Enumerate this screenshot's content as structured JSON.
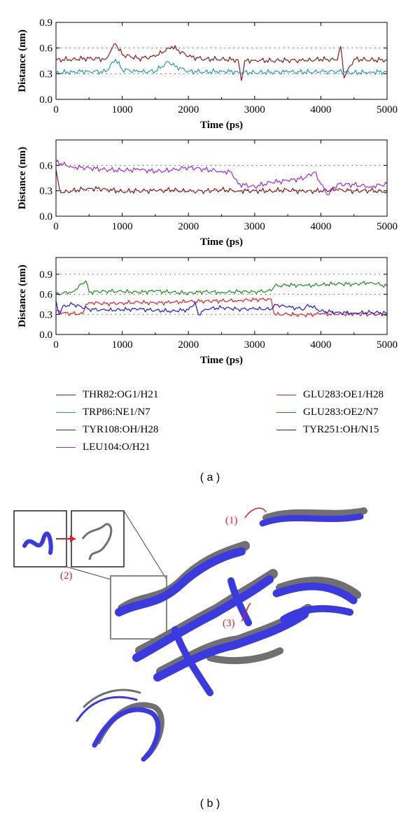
{
  "chart_data": [
    {
      "type": "line",
      "xlabel": "Time (ps)",
      "ylabel": "Distance (nm)",
      "xlim": [
        0,
        5000
      ],
      "ylim": [
        0,
        0.9
      ],
      "xticks": [
        "0",
        "1000",
        "2000",
        "3000",
        "4000",
        "5000"
      ],
      "yticks": [
        "0.0",
        "0.3",
        "0.6",
        "0.9"
      ],
      "grid": "dotted horizontal",
      "series": [
        {
          "name": "THR82:OG1/H21",
          "color": "#8b1a1a",
          "x": [
            0,
            250,
            500,
            750,
            850,
            900,
            1000,
            1250,
            1500,
            1700,
            1750,
            2000,
            2250,
            2500,
            2750,
            2800,
            2850,
            3000,
            3250,
            3500,
            3750,
            4000,
            4250,
            4300,
            4350,
            4500,
            4750,
            5000
          ],
          "values": [
            0.46,
            0.47,
            0.48,
            0.47,
            0.6,
            0.65,
            0.52,
            0.48,
            0.5,
            0.6,
            0.62,
            0.5,
            0.47,
            0.47,
            0.46,
            0.22,
            0.45,
            0.46,
            0.45,
            0.46,
            0.45,
            0.47,
            0.46,
            0.62,
            0.25,
            0.47,
            0.46,
            0.46
          ]
        },
        {
          "name": "TRP86:NE1/N7",
          "color": "#2a9d9d",
          "x": [
            0,
            250,
            500,
            750,
            900,
            1000,
            1250,
            1500,
            1700,
            1750,
            2000,
            2250,
            2500,
            2750,
            3000,
            3250,
            3500,
            3750,
            4000,
            4250,
            4500,
            4750,
            5000
          ],
          "values": [
            0.31,
            0.32,
            0.33,
            0.32,
            0.47,
            0.35,
            0.32,
            0.33,
            0.44,
            0.4,
            0.33,
            0.32,
            0.33,
            0.32,
            0.31,
            0.32,
            0.32,
            0.32,
            0.32,
            0.33,
            0.31,
            0.32,
            0.32
          ]
        }
      ]
    },
    {
      "type": "line",
      "xlabel": "Time (ps)",
      "ylabel": "Distance (nm)",
      "xlim": [
        0,
        5000
      ],
      "ylim": [
        0,
        0.9
      ],
      "xticks": [
        "0",
        "1000",
        "2000",
        "3000",
        "4000",
        "5000"
      ],
      "yticks": [
        "0.0",
        "0.3",
        "0.6"
      ],
      "grid": "dotted horizontal",
      "series": [
        {
          "name": "TYR108:OH/H28",
          "color": "#8b1a1a",
          "x": [
            0,
            50,
            100,
            250,
            500,
            750,
            1000,
            1250,
            1500,
            1750,
            2000,
            2250,
            2500,
            2750,
            3000,
            3250,
            3500,
            3750,
            4000,
            4250,
            4500,
            4750,
            5000
          ],
          "values": [
            0.55,
            0.33,
            0.28,
            0.3,
            0.33,
            0.32,
            0.29,
            0.3,
            0.3,
            0.31,
            0.29,
            0.3,
            0.31,
            0.3,
            0.3,
            0.3,
            0.31,
            0.29,
            0.3,
            0.31,
            0.3,
            0.3,
            0.29
          ]
        },
        {
          "name": "LEU104:O/H21",
          "color": "#9a2be2",
          "x": [
            0,
            250,
            500,
            750,
            1000,
            1250,
            1500,
            1750,
            2000,
            2250,
            2500,
            2650,
            2750,
            3000,
            3250,
            3500,
            3750,
            3900,
            4000,
            4100,
            4250,
            4500,
            4750,
            5000
          ],
          "values": [
            0.64,
            0.58,
            0.57,
            0.55,
            0.54,
            0.55,
            0.53,
            0.54,
            0.58,
            0.55,
            0.53,
            0.52,
            0.38,
            0.35,
            0.4,
            0.42,
            0.45,
            0.52,
            0.38,
            0.25,
            0.38,
            0.37,
            0.35,
            0.38
          ]
        }
      ]
    },
    {
      "type": "line",
      "xlabel": "Time (ps)",
      "ylabel": "Distance (nm)",
      "xlim": [
        0,
        5000
      ],
      "ylim": [
        0,
        1.15
      ],
      "xticks": [
        "0",
        "1000",
        "2000",
        "3000",
        "4000",
        "5000"
      ],
      "yticks": [
        "0.0",
        "0.3",
        "0.6",
        "0.9"
      ],
      "grid": "dotted horizontal",
      "series": [
        {
          "name": "GLU283:OE1/H28",
          "color": "#e02020",
          "x": [
            0,
            100,
            250,
            400,
            450,
            500,
            750,
            1000,
            1250,
            1500,
            1750,
            2000,
            2250,
            2500,
            2750,
            3000,
            3250,
            3300,
            3500,
            3750,
            4000,
            4250,
            4500,
            4750,
            5000
          ],
          "values": [
            0.36,
            0.32,
            0.31,
            0.31,
            0.45,
            0.48,
            0.46,
            0.47,
            0.48,
            0.47,
            0.48,
            0.49,
            0.5,
            0.5,
            0.51,
            0.52,
            0.53,
            0.3,
            0.3,
            0.29,
            0.31,
            0.3,
            0.31,
            0.3,
            0.3
          ]
        },
        {
          "name": "GLU283:OE2/N7",
          "color": "#1e8c1e",
          "x": [
            0,
            250,
            450,
            500,
            750,
            1000,
            1250,
            1500,
            1750,
            2000,
            2250,
            2500,
            2750,
            3000,
            3250,
            3300,
            3500,
            3750,
            4000,
            4250,
            4500,
            4750,
            5000
          ],
          "values": [
            0.6,
            0.64,
            0.8,
            0.63,
            0.65,
            0.64,
            0.63,
            0.65,
            0.63,
            0.62,
            0.64,
            0.63,
            0.64,
            0.64,
            0.65,
            0.72,
            0.74,
            0.73,
            0.74,
            0.76,
            0.75,
            0.78,
            0.72
          ]
        },
        {
          "name": "TYR251:OH/N15",
          "color": "#1a1ae6",
          "x": [
            0,
            50,
            100,
            250,
            500,
            750,
            1000,
            1250,
            1500,
            1750,
            2000,
            2100,
            2150,
            2250,
            2500,
            2750,
            3000,
            3250,
            3300,
            3500,
            3750,
            3800,
            4000,
            4250,
            4500,
            4750,
            5000
          ],
          "values": [
            0.5,
            0.3,
            0.42,
            0.45,
            0.38,
            0.36,
            0.37,
            0.38,
            0.36,
            0.35,
            0.37,
            0.48,
            0.3,
            0.38,
            0.4,
            0.38,
            0.38,
            0.38,
            0.45,
            0.41,
            0.38,
            0.45,
            0.35,
            0.33,
            0.32,
            0.33,
            0.32
          ]
        }
      ]
    }
  ],
  "legend": [
    {
      "label": "THR82:OG1/H21",
      "color": "#8b1a1a"
    },
    {
      "label": "TRP86:NE1/N7",
      "color": "#2a9d9d"
    },
    {
      "label": "TYR108:OH/H28",
      "color": "#8b1a1a"
    },
    {
      "label": "LEU104:O/H21",
      "color": "#9a2be2"
    },
    {
      "label": "GLU283:OE1/H28",
      "color": "#e02020"
    },
    {
      "label": "GLU283:OE2/N7",
      "color": "#1e8c1e"
    },
    {
      "label": "TYR251:OH/N15",
      "color": "#1a1ae6"
    }
  ],
  "panel_a_label": "( a )",
  "panel_b_label": "( b )",
  "structure": {
    "annotations": [
      "(1)",
      "(2)",
      "(3)"
    ],
    "colors": {
      "blue": "#3a3ae0",
      "gray": "#707070",
      "red": "#e02020"
    }
  }
}
